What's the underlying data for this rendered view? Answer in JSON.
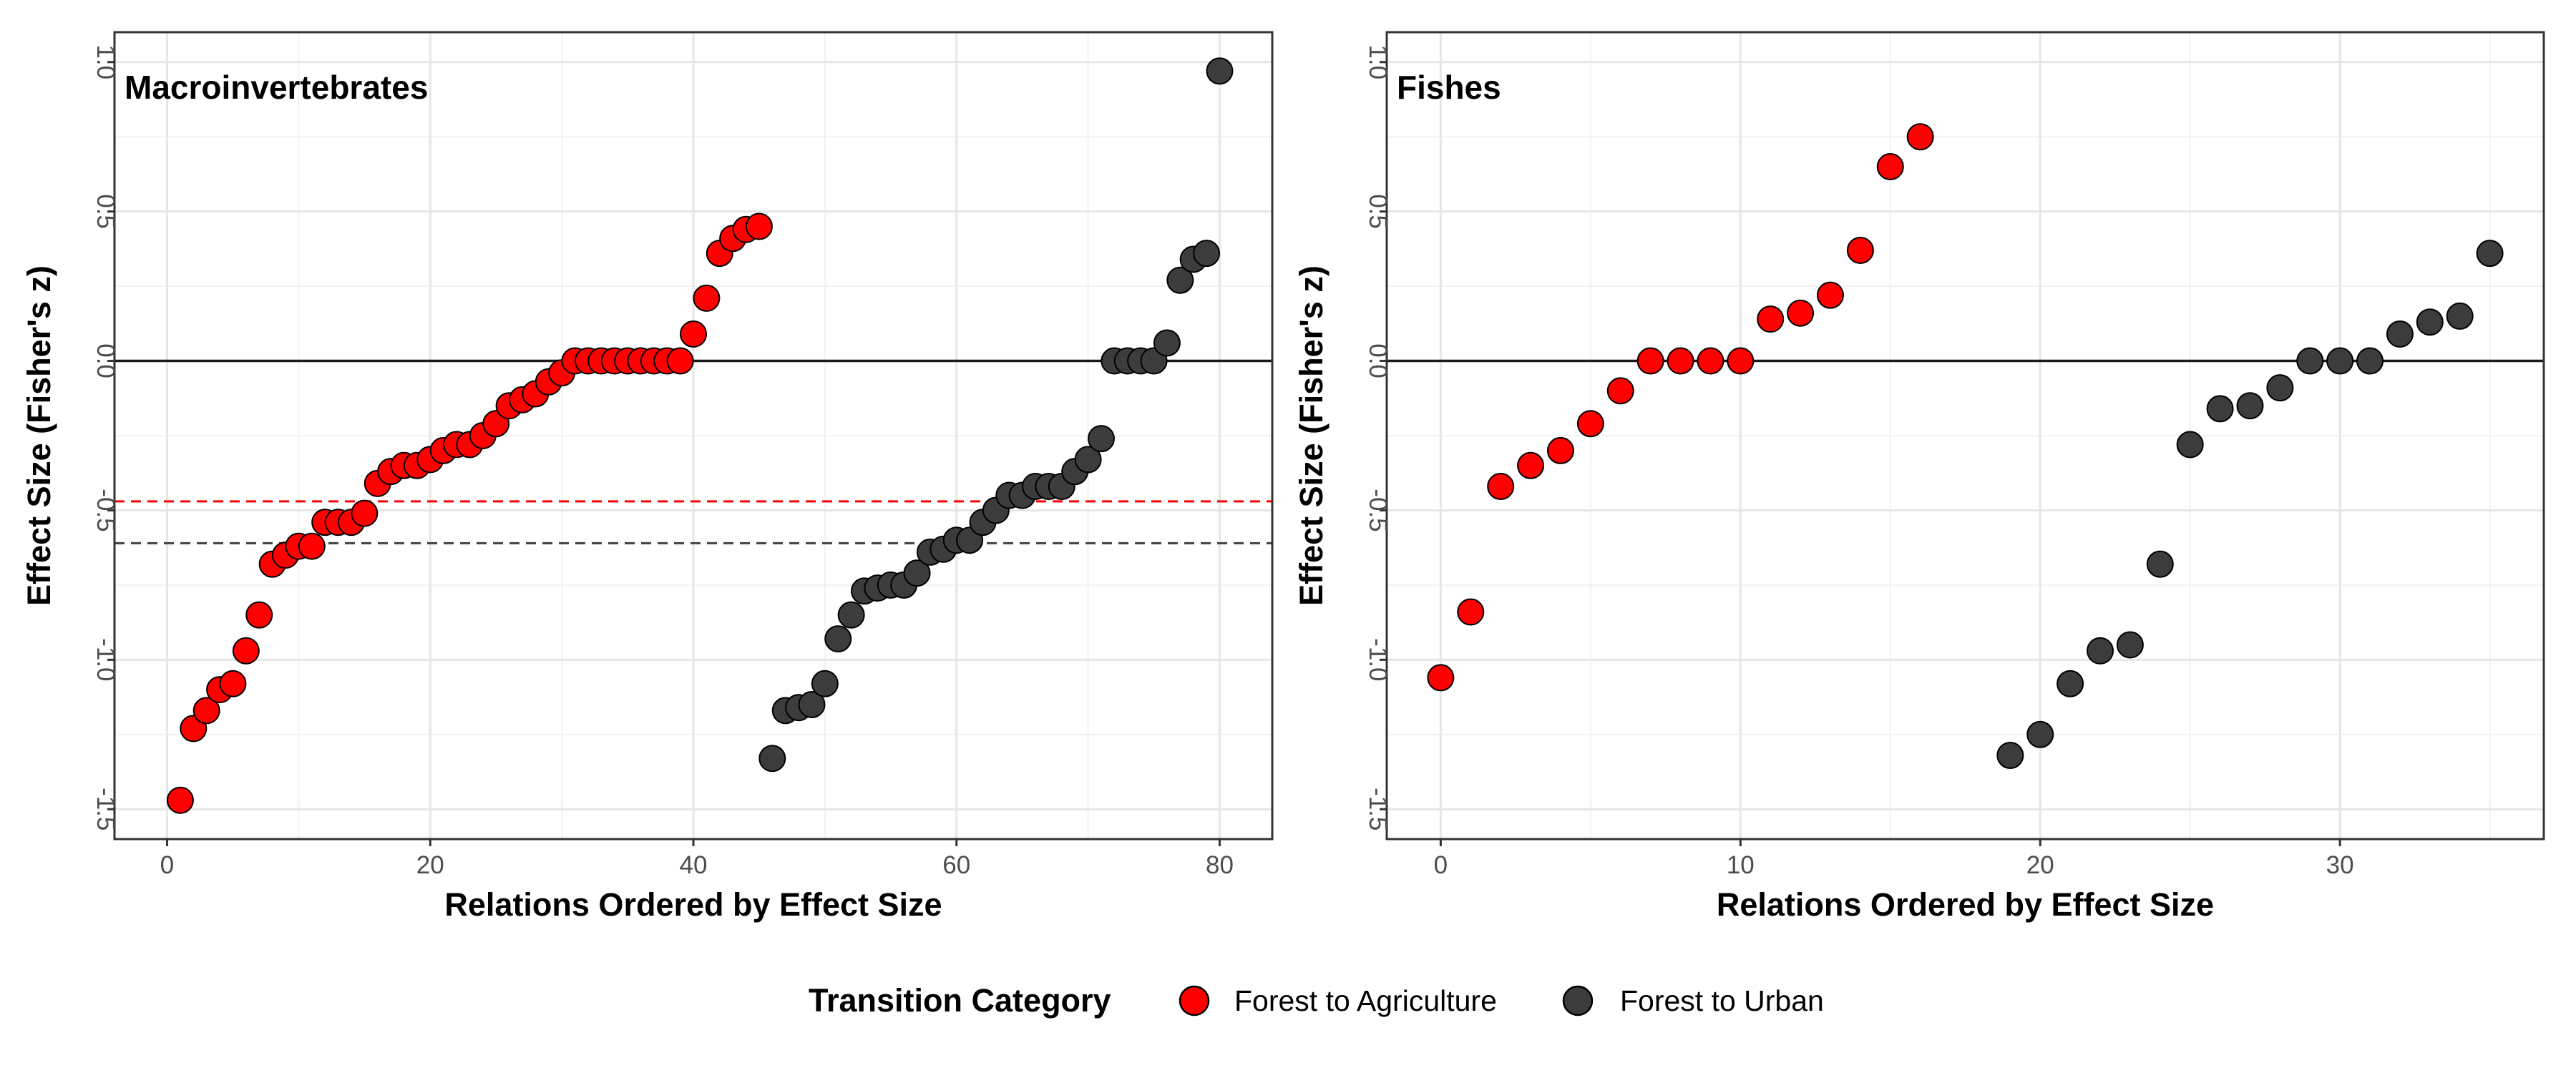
{
  "chart_data": [
    {
      "type": "scatter",
      "title": "Macroinvertebrates",
      "xlabel": "Relations Ordered by Effect Size",
      "ylabel": "Effect Size (Fisher's z)",
      "xlim": [
        -4,
        84
      ],
      "ylim": [
        -1.6,
        1.1
      ],
      "x_ticks": [
        0,
        20,
        40,
        60,
        80
      ],
      "x_tick_labels": [
        "0",
        "20",
        "40",
        "60",
        "80"
      ],
      "y_ticks": [
        -1.5,
        -1.0,
        -0.5,
        0.0,
        0.5,
        1.0
      ],
      "y_tick_labels": [
        "-1.5",
        "-1.0",
        "-0.5",
        "0.0",
        "0.5",
        "1.0"
      ],
      "grid": true,
      "hlines": [
        {
          "y": 0.0,
          "style": "solid",
          "color": "#1a1a1a"
        },
        {
          "y": -0.47,
          "style": "dashed",
          "color": "#ff0000"
        },
        {
          "y": -0.61,
          "style": "dashed",
          "color": "#404040"
        }
      ],
      "series": [
        {
          "name": "Forest to Agriculture",
          "color": "#ff0000",
          "x": [
            1,
            2,
            3,
            4,
            5,
            6,
            7,
            8,
            9,
            10,
            11,
            12,
            13,
            14,
            15,
            16,
            17,
            18,
            19,
            20,
            21,
            22,
            23,
            24,
            25,
            26,
            27,
            28,
            29,
            30,
            31,
            32,
            33,
            34,
            35,
            36,
            37,
            38,
            39,
            40,
            41,
            42,
            43,
            44,
            45
          ],
          "y": [
            -1.47,
            -1.23,
            -1.17,
            -1.1,
            -1.08,
            -0.97,
            -0.85,
            -0.68,
            -0.65,
            -0.62,
            -0.62,
            -0.54,
            -0.54,
            -0.54,
            -0.51,
            -0.41,
            -0.37,
            -0.35,
            -0.35,
            -0.33,
            -0.3,
            -0.28,
            -0.28,
            -0.25,
            -0.21,
            -0.15,
            -0.13,
            -0.11,
            -0.07,
            -0.04,
            0.0,
            0.0,
            0.0,
            0.0,
            0.0,
            0.0,
            0.0,
            0.0,
            0.0,
            0.09,
            0.21,
            0.36,
            0.41,
            0.44,
            0.45
          ]
        },
        {
          "name": "Forest to Urban",
          "color": "#3c3c3c",
          "x": [
            46,
            47,
            48,
            49,
            50,
            51,
            52,
            53,
            54,
            55,
            56,
            57,
            58,
            59,
            60,
            61,
            62,
            63,
            64,
            65,
            66,
            67,
            68,
            69,
            70,
            71,
            72,
            73,
            74,
            75,
            76,
            77,
            78,
            79,
            80
          ],
          "y": [
            -1.33,
            -1.17,
            -1.16,
            -1.15,
            -1.08,
            -0.93,
            -0.85,
            -0.77,
            -0.76,
            -0.75,
            -0.75,
            -0.71,
            -0.64,
            -0.63,
            -0.6,
            -0.6,
            -0.54,
            -0.5,
            -0.45,
            -0.45,
            -0.42,
            -0.42,
            -0.42,
            -0.37,
            -0.33,
            -0.26,
            0.0,
            0.0,
            0.0,
            0.0,
            0.06,
            0.27,
            0.34,
            0.36,
            0.97
          ]
        }
      ]
    },
    {
      "type": "scatter",
      "title": "Fishes",
      "xlabel": "Relations Ordered by Effect Size",
      "ylabel": "Effect Size (Fisher's z)",
      "xlim": [
        -1.8,
        36.8
      ],
      "ylim": [
        -1.6,
        1.1
      ],
      "x_ticks": [
        0,
        10,
        20,
        30
      ],
      "x_tick_labels": [
        "0",
        "10",
        "20",
        "30"
      ],
      "y_ticks": [
        -1.5,
        -1.0,
        -0.5,
        0.0,
        0.5,
        1.0
      ],
      "y_tick_labels": [
        "-1.5",
        "-1.0",
        "-0.5",
        "0.0",
        "0.5",
        "1.0"
      ],
      "grid": true,
      "hlines": [
        {
          "y": 0.0,
          "style": "solid",
          "color": "#1a1a1a"
        }
      ],
      "series": [
        {
          "name": "Forest to Agriculture",
          "color": "#ff0000",
          "x": [
            0,
            1,
            2,
            3,
            4,
            5,
            6,
            7,
            8,
            9,
            10,
            11,
            12,
            13,
            14,
            15,
            16
          ],
          "y": [
            -1.06,
            -0.84,
            -0.42,
            -0.35,
            -0.3,
            -0.21,
            -0.1,
            0.0,
            0.0,
            0.0,
            0.0,
            0.14,
            0.16,
            0.22,
            0.37,
            0.65,
            0.75
          ]
        },
        {
          "name": "Forest to Urban",
          "color": "#3c3c3c",
          "x": [
            19,
            20,
            21,
            22,
            23,
            24,
            25,
            26,
            27,
            28,
            29,
            30,
            31,
            32,
            33,
            34,
            35
          ],
          "y": [
            -1.32,
            -1.25,
            -1.08,
            -0.97,
            -0.95,
            -0.68,
            -0.28,
            -0.16,
            -0.15,
            -0.09,
            0.0,
            0.0,
            0.0,
            0.09,
            0.13,
            0.15,
            0.36
          ]
        }
      ]
    }
  ],
  "legend": {
    "title": "Transition Category",
    "items": [
      {
        "label": "Forest to Agriculture",
        "color": "#ff0000"
      },
      {
        "label": "Forest to Urban",
        "color": "#3c3c3c"
      }
    ]
  }
}
